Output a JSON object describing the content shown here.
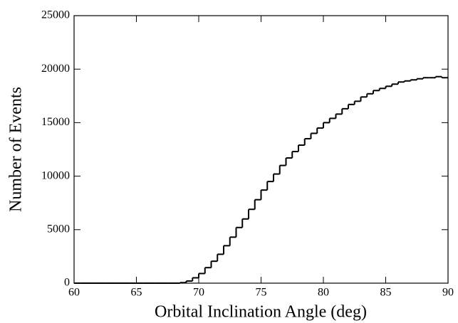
{
  "chart_data": {
    "type": "histogram",
    "xlabel": "Orbital Inclination Angle (deg)",
    "ylabel": "Number of Events",
    "bins": [
      60,
      60.5,
      61,
      61.5,
      62,
      62.5,
      63,
      63.5,
      64,
      64.5,
      65,
      65.5,
      66,
      66.5,
      67,
      67.5,
      68,
      68.5,
      69,
      69.5,
      70,
      70.5,
      71,
      71.5,
      72,
      72.5,
      73,
      73.5,
      74,
      74.5,
      75,
      75.5,
      76,
      76.5,
      77,
      77.5,
      78,
      78.5,
      79,
      79.5,
      80,
      80.5,
      81,
      81.5,
      82,
      82.5,
      83,
      83.5,
      84,
      84.5,
      85,
      85.5,
      86,
      86.5,
      87,
      87.5,
      88,
      88.5,
      89,
      89.5,
      90
    ],
    "values": [
      0,
      0,
      0,
      0,
      0,
      0,
      0,
      0,
      0,
      0,
      0,
      0,
      0,
      0,
      0,
      0,
      0,
      50,
      200,
      500,
      900,
      1450,
      2050,
      2700,
      3500,
      4300,
      5200,
      6000,
      6900,
      7800,
      8700,
      9500,
      10200,
      11000,
      11700,
      12300,
      12900,
      13500,
      14000,
      14500,
      15000,
      15400,
      15800,
      16300,
      16700,
      17000,
      17400,
      17700,
      18000,
      18200,
      18400,
      18600,
      18800,
      18900,
      19000,
      19100,
      19200,
      19200,
      19300,
      19200
    ],
    "color": "#000000",
    "xlim": [
      60,
      90
    ],
    "xticks": [
      60,
      65,
      70,
      75,
      80,
      85,
      90
    ],
    "ylim": [
      0,
      25000
    ],
    "yticks": [
      0,
      5000,
      10000,
      15000,
      20000,
      25000
    ]
  }
}
